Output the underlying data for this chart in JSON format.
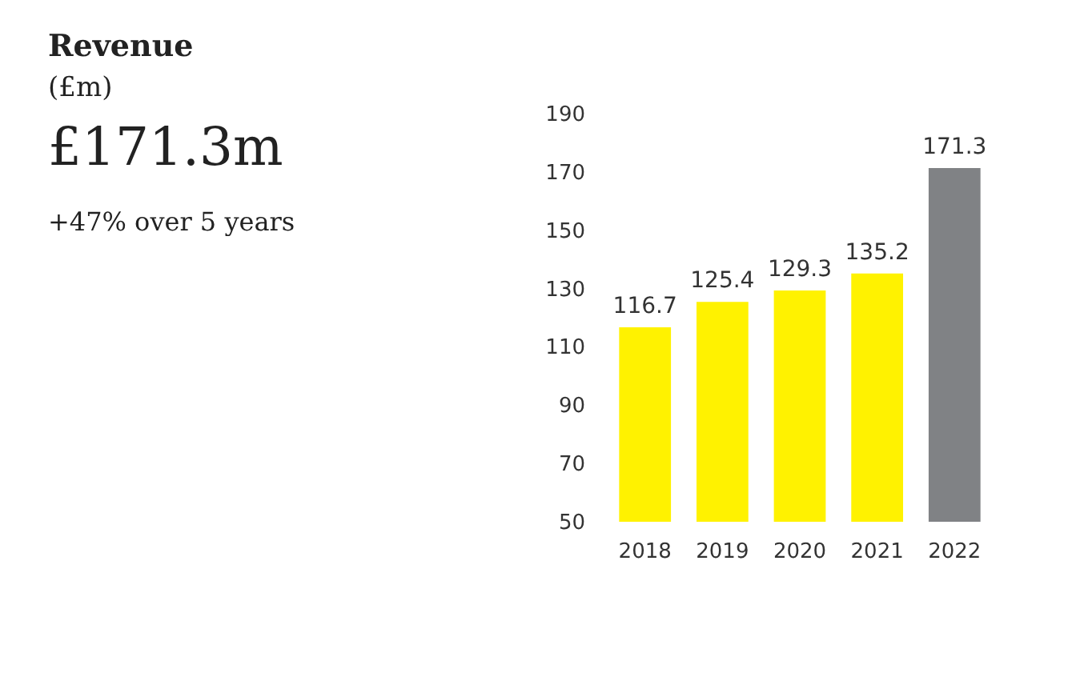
{
  "chart_data": {
    "type": "bar",
    "title": "Revenue",
    "subtitle": "(£m)",
    "annotations": [
      "£171.3m",
      "+47% over 5 years"
    ],
    "categories": [
      "2018",
      "2019",
      "2020",
      "2021",
      "2022"
    ],
    "values": [
      116.7,
      125.4,
      129.3,
      135.2,
      171.3
    ],
    "colors": [
      "#fff200",
      "#fff200",
      "#fff200",
      "#fff200",
      "#808285"
    ],
    "ylim": [
      50,
      190
    ],
    "yticks": [
      50,
      70,
      90,
      110,
      130,
      150,
      170,
      190
    ],
    "data_labels": true,
    "grid": false
  }
}
